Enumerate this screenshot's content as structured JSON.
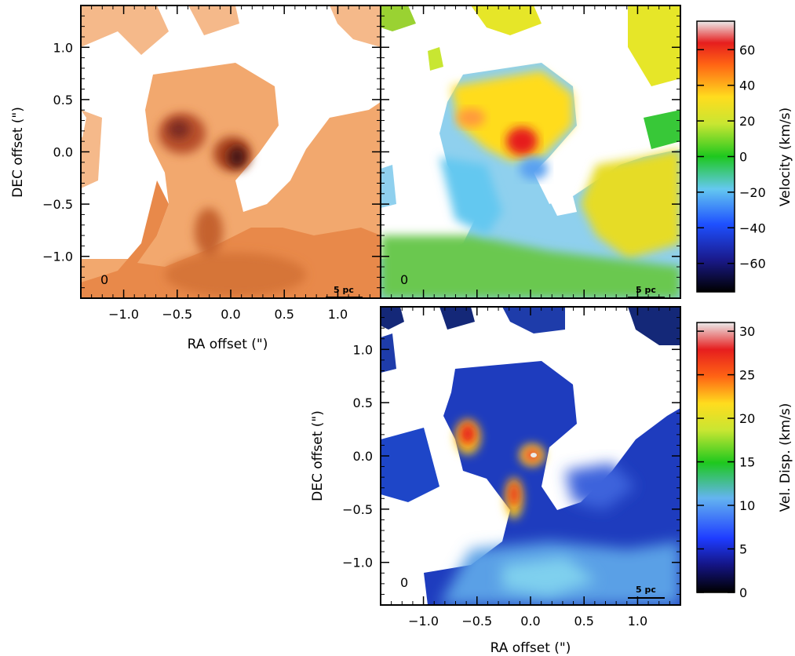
{
  "chart_data": [
    {
      "type": "heatmap",
      "panel": "intensity",
      "xlabel": "RA offset (\")",
      "ylabel": "DEC offset (\")",
      "xlim": [
        -1.4,
        1.4
      ],
      "ylim": [
        -1.4,
        1.4
      ],
      "xticks": [
        "−1.0",
        "−0.5",
        "0.0",
        "0.5",
        "1.0"
      ],
      "yticks": [
        "1.0",
        "0.5",
        "0.0",
        "−0.5",
        "−1.0"
      ],
      "scalebar_label": "5 pc",
      "beam_label": "0",
      "colormap": "orange-brown",
      "blobs": [
        {
          "x": -0.55,
          "y": 0.2,
          "rx": 0.18,
          "ry": 0.15,
          "level": 0.9
        },
        {
          "x": 0.05,
          "y": 0.05,
          "rx": 0.13,
          "ry": 0.12,
          "level": 1.0
        },
        {
          "x": -0.2,
          "y": -0.6,
          "rx": 0.12,
          "ry": 0.2,
          "level": 0.75
        },
        {
          "x": -0.15,
          "y": -1.1,
          "rx": 0.5,
          "ry": 0.2,
          "level": 0.55
        }
      ]
    },
    {
      "type": "heatmap",
      "panel": "velocity",
      "xlim": [
        -1.4,
        1.4
      ],
      "ylim": [
        -1.4,
        1.4
      ],
      "scalebar_label": "5 pc",
      "beam_label": "0",
      "colorbar": {
        "label": "Velocity (km/s)",
        "range": [
          -76,
          76
        ],
        "ticks": [
          "60",
          "40",
          "20",
          "0",
          "−20",
          "−40",
          "−60"
        ],
        "tick_values": [
          60,
          40,
          20,
          0,
          -20,
          -40,
          -60
        ]
      }
    },
    {
      "type": "heatmap",
      "panel": "dispersion",
      "xlabel": "RA offset (\")",
      "ylabel": "DEC offset (\")",
      "xlim": [
        -1.4,
        1.4
      ],
      "ylim": [
        -1.4,
        1.4
      ],
      "xticks": [
        "−1.0",
        "−0.5",
        "0.0",
        "0.5",
        "1.0"
      ],
      "yticks": [
        "1.0",
        "0.5",
        "0.0",
        "−0.5",
        "−1.0"
      ],
      "scalebar_label": "5 pc",
      "beam_label": "0",
      "colorbar": {
        "label": "Vel. Disp. (km/s)",
        "range": [
          0,
          31
        ],
        "ticks": [
          "30",
          "25",
          "20",
          "15",
          "10",
          "5",
          "0"
        ],
        "tick_values": [
          30,
          25,
          20,
          15,
          10,
          5,
          0
        ]
      },
      "peaks": [
        {
          "x": -0.65,
          "y": 0.25,
          "value": 24
        },
        {
          "x": 0.0,
          "y": 0.05,
          "value": 29
        },
        {
          "x": -0.15,
          "y": -0.35,
          "value": 25
        }
      ]
    }
  ]
}
